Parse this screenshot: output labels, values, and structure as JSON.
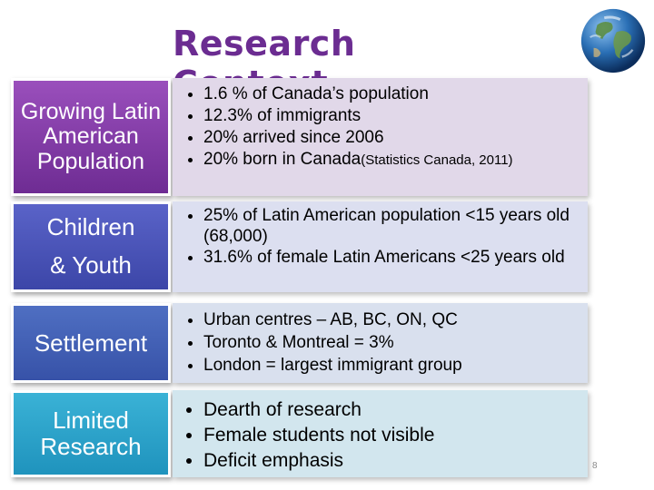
{
  "title": "Research Context",
  "slide_number": "8",
  "icons": {
    "globe": "globe-icon"
  },
  "colors": {
    "title": "#6b2c91",
    "row1_label": "#8a43ae",
    "row2_label": "#4a54b8",
    "row3_label": "#4462b6",
    "row4_label": "#2ea3ca"
  },
  "rows": [
    {
      "label": "Growing Latin American Population",
      "items": [
        "1.6 % of Canada’s population",
        "12.3% of immigrants",
        "20% arrived since 2006",
        "20% born in Canada"
      ],
      "source": "(Statistics Canada, 2011)"
    },
    {
      "label_line1": "Children",
      "label_line2": "& Youth",
      "items": [
        "25% of Latin American population <15 years old (68,000)",
        "31.6% of female Latin Americans <25 years old"
      ]
    },
    {
      "label": "Settlement",
      "items": [
        "Urban centres – AB, BC, ON, QC",
        "Toronto & Montreal = 3%",
        "London = largest immigrant group"
      ]
    },
    {
      "label": "Limited Research",
      "items": [
        "Dearth of research",
        "Female students not visible",
        "Deficit emphasis"
      ]
    }
  ]
}
